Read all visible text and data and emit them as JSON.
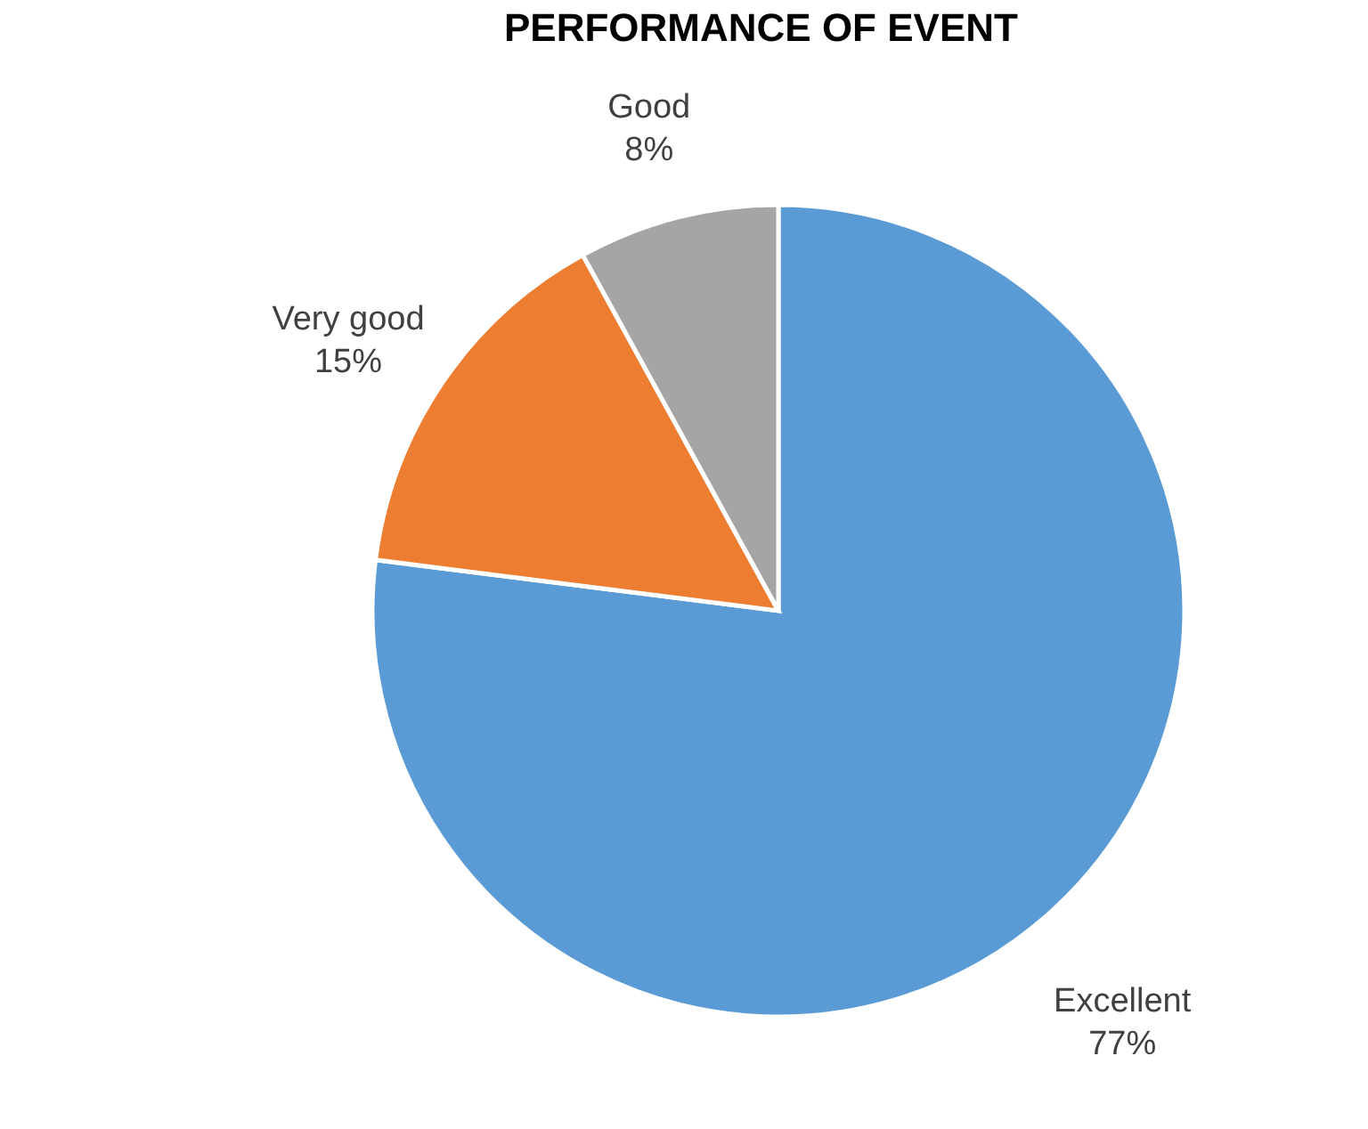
{
  "chart_data": {
    "type": "pie",
    "title": "PERFORMANCE OF EVENT",
    "categories": [
      "Excellent",
      "Very good",
      "Good"
    ],
    "values": [
      77,
      15,
      8
    ],
    "colors": [
      "#5b9bd5",
      "#ed7d31",
      "#a5a5a5"
    ],
    "value_labels": [
      "77%",
      "15%",
      "8%"
    ],
    "legend": false
  }
}
